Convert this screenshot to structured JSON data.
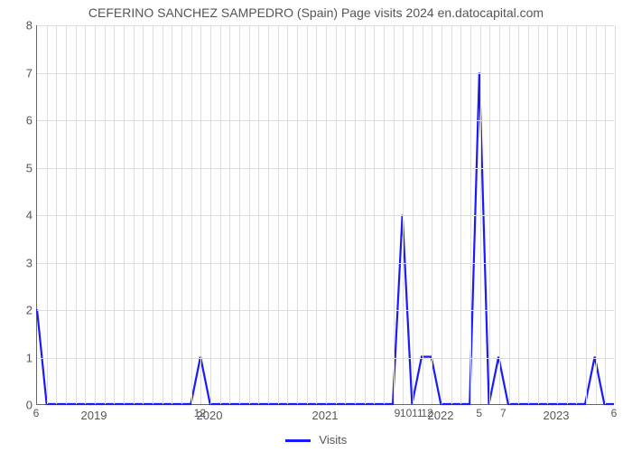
{
  "chart": {
    "type": "line",
    "title": "CEFERINO SANCHEZ SAMPEDRO (Spain) Page visits 2024 en.datocapital.com",
    "title_fontsize": 14,
    "title_color": "#555555",
    "background_color": "#ffffff",
    "grid_color": "#dddddd",
    "axis_color": "#666666",
    "tick_label_color": "#555555",
    "tick_fontsize": 13,
    "data_label_fontsize": 12,
    "line_color": "#1a1aff",
    "line_width": 2.2,
    "ylim": [
      0,
      8
    ],
    "ytick_step": 1,
    "xlim": [
      0,
      60
    ],
    "x_major_ticks": [
      {
        "pos": 6,
        "label": "2019"
      },
      {
        "pos": 18,
        "label": "2020"
      },
      {
        "pos": 30,
        "label": "2021"
      },
      {
        "pos": 42,
        "label": "2022"
      },
      {
        "pos": 54,
        "label": "2023"
      }
    ],
    "x_minor_step": 1,
    "series": [
      {
        "x": 0,
        "y": 2
      },
      {
        "x": 1,
        "y": 0
      },
      {
        "x": 2,
        "y": 0
      },
      {
        "x": 3,
        "y": 0
      },
      {
        "x": 4,
        "y": 0
      },
      {
        "x": 5,
        "y": 0
      },
      {
        "x": 6,
        "y": 0
      },
      {
        "x": 7,
        "y": 0
      },
      {
        "x": 8,
        "y": 0
      },
      {
        "x": 9,
        "y": 0
      },
      {
        "x": 10,
        "y": 0
      },
      {
        "x": 11,
        "y": 0
      },
      {
        "x": 12,
        "y": 0
      },
      {
        "x": 13,
        "y": 0
      },
      {
        "x": 14,
        "y": 0
      },
      {
        "x": 15,
        "y": 0
      },
      {
        "x": 16,
        "y": 0
      },
      {
        "x": 17,
        "y": 1
      },
      {
        "x": 18,
        "y": 0
      },
      {
        "x": 19,
        "y": 0
      },
      {
        "x": 20,
        "y": 0
      },
      {
        "x": 21,
        "y": 0
      },
      {
        "x": 22,
        "y": 0
      },
      {
        "x": 23,
        "y": 0
      },
      {
        "x": 24,
        "y": 0
      },
      {
        "x": 25,
        "y": 0
      },
      {
        "x": 26,
        "y": 0
      },
      {
        "x": 27,
        "y": 0
      },
      {
        "x": 28,
        "y": 0
      },
      {
        "x": 29,
        "y": 0
      },
      {
        "x": 30,
        "y": 0
      },
      {
        "x": 31,
        "y": 0
      },
      {
        "x": 32,
        "y": 0
      },
      {
        "x": 33,
        "y": 0
      },
      {
        "x": 34,
        "y": 0
      },
      {
        "x": 35,
        "y": 0
      },
      {
        "x": 36,
        "y": 0
      },
      {
        "x": 37,
        "y": 0
      },
      {
        "x": 38,
        "y": 4
      },
      {
        "x": 39,
        "y": 0
      },
      {
        "x": 40,
        "y": 1
      },
      {
        "x": 41,
        "y": 1
      },
      {
        "x": 42,
        "y": 0
      },
      {
        "x": 43,
        "y": 0
      },
      {
        "x": 44,
        "y": 0
      },
      {
        "x": 45,
        "y": 0
      },
      {
        "x": 46,
        "y": 7
      },
      {
        "x": 47,
        "y": 0
      },
      {
        "x": 48,
        "y": 1
      },
      {
        "x": 49,
        "y": 0
      },
      {
        "x": 50,
        "y": 0
      },
      {
        "x": 51,
        "y": 0
      },
      {
        "x": 52,
        "y": 0
      },
      {
        "x": 53,
        "y": 0
      },
      {
        "x": 54,
        "y": 0
      },
      {
        "x": 55,
        "y": 0
      },
      {
        "x": 56,
        "y": 0
      },
      {
        "x": 57,
        "y": 0
      },
      {
        "x": 58,
        "y": 1
      },
      {
        "x": 59,
        "y": 0
      },
      {
        "x": 60,
        "y": 0
      }
    ],
    "data_labels": [
      {
        "x": 0,
        "y": 0,
        "text": "6"
      },
      {
        "x": 17,
        "y": 0,
        "text": "12"
      },
      {
        "x": 37.5,
        "y": 0,
        "text": "9"
      },
      {
        "x": 38.4,
        "y": 0,
        "text": "10"
      },
      {
        "x": 39.6,
        "y": 0,
        "text": "11"
      },
      {
        "x": 40.6,
        "y": 0,
        "text": "12"
      },
      {
        "x": 46,
        "y": 0,
        "text": "5"
      },
      {
        "x": 48.5,
        "y": 0,
        "text": "7"
      },
      {
        "x": 60,
        "y": 0,
        "text": "6"
      }
    ],
    "legend": {
      "label": "Visits",
      "swatch_color": "#1a1aff"
    }
  }
}
